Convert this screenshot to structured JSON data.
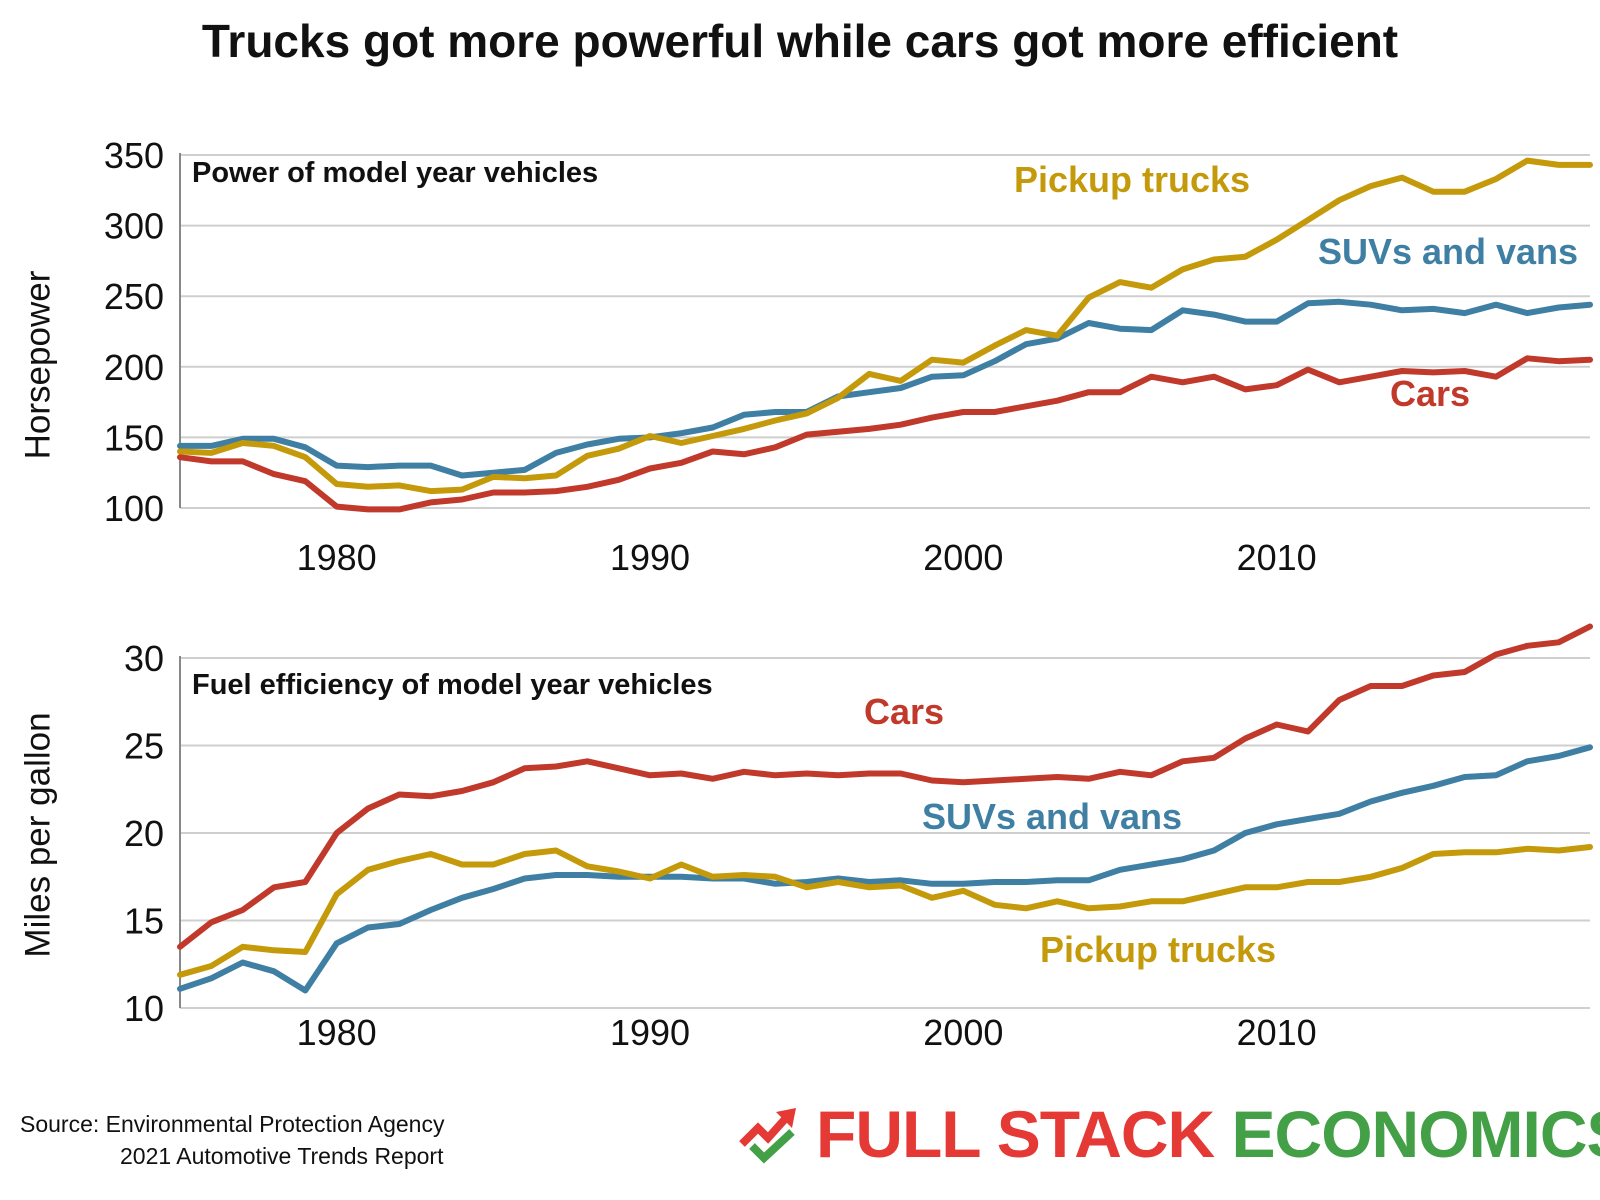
{
  "title": "Trucks got more powerful while cars got more efficient",
  "source": {
    "line1": "Source: Environmental Protection Agency",
    "line2": "2021 Automotive Trends Report"
  },
  "logo": {
    "word1": "FULL STACK",
    "word2": "ECONOMICS",
    "icon": "trend-arrow-check-icon"
  },
  "colors": {
    "cars": "#c0392b",
    "suvs": "#3e7fa3",
    "pickups": "#c49a0b",
    "grid": "#cfcfcf"
  },
  "chart_data": [
    {
      "type": "line",
      "title": "Power of model year vehicles",
      "ylabel": "Horsepower",
      "xlabel": "",
      "xlim": [
        1975,
        2020
      ],
      "ylim": [
        100,
        350
      ],
      "yticks": [
        100,
        150,
        200,
        250,
        300,
        350
      ],
      "xticks": [
        1980,
        1990,
        2000,
        2010
      ],
      "grid": true,
      "x": [
        1975,
        1976,
        1977,
        1978,
        1979,
        1980,
        1981,
        1982,
        1983,
        1984,
        1985,
        1986,
        1987,
        1988,
        1989,
        1990,
        1991,
        1992,
        1993,
        1994,
        1995,
        1996,
        1997,
        1998,
        1999,
        2000,
        2001,
        2002,
        2003,
        2004,
        2005,
        2006,
        2007,
        2008,
        2009,
        2010,
        2011,
        2012,
        2013,
        2014,
        2015,
        2016,
        2017,
        2018,
        2019,
        2020
      ],
      "series": [
        {
          "name": "Cars",
          "key": "cars",
          "label": "Cars",
          "values": [
            136,
            133,
            133,
            124,
            119,
            101,
            99,
            99,
            104,
            106,
            111,
            111,
            112,
            115,
            120,
            128,
            132,
            140,
            138,
            143,
            152,
            154,
            156,
            159,
            164,
            168,
            168,
            172,
            176,
            182,
            182,
            193,
            189,
            193,
            184,
            187,
            198,
            189,
            193,
            197,
            196,
            197,
            193,
            206,
            204,
            205
          ]
        },
        {
          "name": "SUVs and vans",
          "key": "suvs",
          "label": "SUVs and vans",
          "values": [
            144,
            144,
            149,
            149,
            143,
            130,
            129,
            130,
            130,
            123,
            125,
            127,
            139,
            145,
            149,
            150,
            153,
            157,
            166,
            168,
            168,
            179,
            182,
            185,
            193,
            194,
            204,
            216,
            220,
            231,
            227,
            226,
            240,
            237,
            232,
            232,
            245,
            246,
            244,
            240,
            241,
            238,
            244,
            238,
            242,
            244
          ]
        },
        {
          "name": "Pickup trucks",
          "key": "pickups",
          "label": "Pickup trucks",
          "values": [
            140,
            139,
            146,
            144,
            136,
            117,
            115,
            116,
            112,
            113,
            122,
            121,
            123,
            137,
            142,
            151,
            146,
            151,
            156,
            162,
            167,
            178,
            195,
            190,
            205,
            203,
            215,
            226,
            222,
            249,
            260,
            256,
            269,
            276,
            278,
            290,
            304,
            318,
            328,
            334,
            324,
            324,
            333,
            346,
            343,
            343
          ]
        }
      ]
    },
    {
      "type": "line",
      "title": "Fuel efficiency of model year vehicles",
      "ylabel": "Miles per gallon",
      "xlabel": "",
      "xlim": [
        1975,
        2020
      ],
      "ylim": [
        10,
        30
      ],
      "yticks": [
        10,
        15,
        20,
        25,
        30
      ],
      "xticks": [
        1980,
        1990,
        2000,
        2010
      ],
      "grid": true,
      "x": [
        1975,
        1976,
        1977,
        1978,
        1979,
        1980,
        1981,
        1982,
        1983,
        1984,
        1985,
        1986,
        1987,
        1988,
        1989,
        1990,
        1991,
        1992,
        1993,
        1994,
        1995,
        1996,
        1997,
        1998,
        1999,
        2000,
        2001,
        2002,
        2003,
        2004,
        2005,
        2006,
        2007,
        2008,
        2009,
        2010,
        2011,
        2012,
        2013,
        2014,
        2015,
        2016,
        2017,
        2018,
        2019,
        2020
      ],
      "series": [
        {
          "name": "Cars",
          "key": "cars",
          "label": "Cars",
          "values": [
            13.5,
            14.9,
            15.6,
            16.9,
            17.2,
            20.0,
            21.4,
            22.2,
            22.1,
            22.4,
            22.9,
            23.7,
            23.8,
            24.1,
            23.7,
            23.3,
            23.4,
            23.1,
            23.5,
            23.3,
            23.4,
            23.3,
            23.4,
            23.4,
            23.0,
            22.9,
            23.0,
            23.1,
            23.2,
            23.1,
            23.5,
            23.3,
            24.1,
            24.3,
            25.4,
            26.2,
            25.8,
            27.6,
            28.4,
            28.4,
            29.0,
            29.2,
            30.2,
            30.7,
            30.9,
            31.8
          ]
        },
        {
          "name": "SUVs and vans",
          "key": "suvs",
          "label": "SUVs and vans",
          "values": [
            11.1,
            11.7,
            12.6,
            12.1,
            11.0,
            13.7,
            14.6,
            14.8,
            15.6,
            16.3,
            16.8,
            17.4,
            17.6,
            17.6,
            17.5,
            17.5,
            17.5,
            17.4,
            17.4,
            17.1,
            17.2,
            17.4,
            17.2,
            17.3,
            17.1,
            17.1,
            17.2,
            17.2,
            17.3,
            17.3,
            17.9,
            18.2,
            18.5,
            19.0,
            20.0,
            20.5,
            20.8,
            21.1,
            21.8,
            22.3,
            22.7,
            23.2,
            23.3,
            24.1,
            24.4,
            24.9
          ]
        },
        {
          "name": "Pickup trucks",
          "key": "pickups",
          "label": "Pickup trucks",
          "values": [
            11.9,
            12.4,
            13.5,
            13.3,
            13.2,
            16.5,
            17.9,
            18.4,
            18.8,
            18.2,
            18.2,
            18.8,
            19.0,
            18.1,
            17.8,
            17.4,
            18.2,
            17.5,
            17.6,
            17.5,
            16.9,
            17.2,
            16.9,
            17.0,
            16.3,
            16.7,
            15.9,
            15.7,
            16.1,
            15.7,
            15.8,
            16.1,
            16.1,
            16.5,
            16.9,
            16.9,
            17.2,
            17.2,
            17.5,
            18.0,
            18.8,
            18.9,
            18.9,
            19.1,
            19.0,
            19.2
          ]
        }
      ]
    }
  ]
}
